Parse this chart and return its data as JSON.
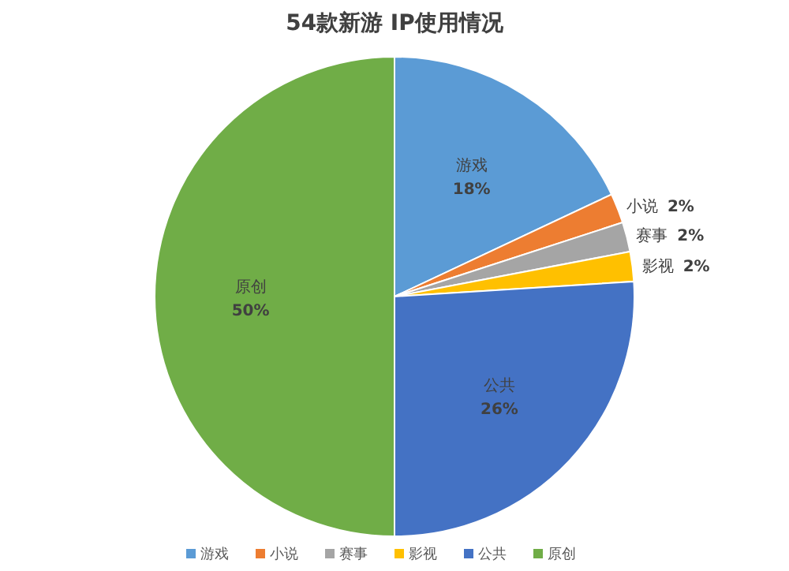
{
  "chart_data": {
    "type": "pie",
    "title": "54款新游 IP使用情况",
    "categories": [
      "游戏",
      "小说",
      "赛事",
      "影视",
      "公共",
      "原创"
    ],
    "values": [
      18,
      2,
      2,
      2,
      26,
      50
    ],
    "colors": [
      "#5b9bd5",
      "#ed7d31",
      "#a5a5a5",
      "#ffc000",
      "#4472c4",
      "#70ad47"
    ],
    "value_labels": [
      "18%",
      "2%",
      "2%",
      "2%",
      "26%",
      "50%"
    ],
    "legend": "bottom"
  }
}
